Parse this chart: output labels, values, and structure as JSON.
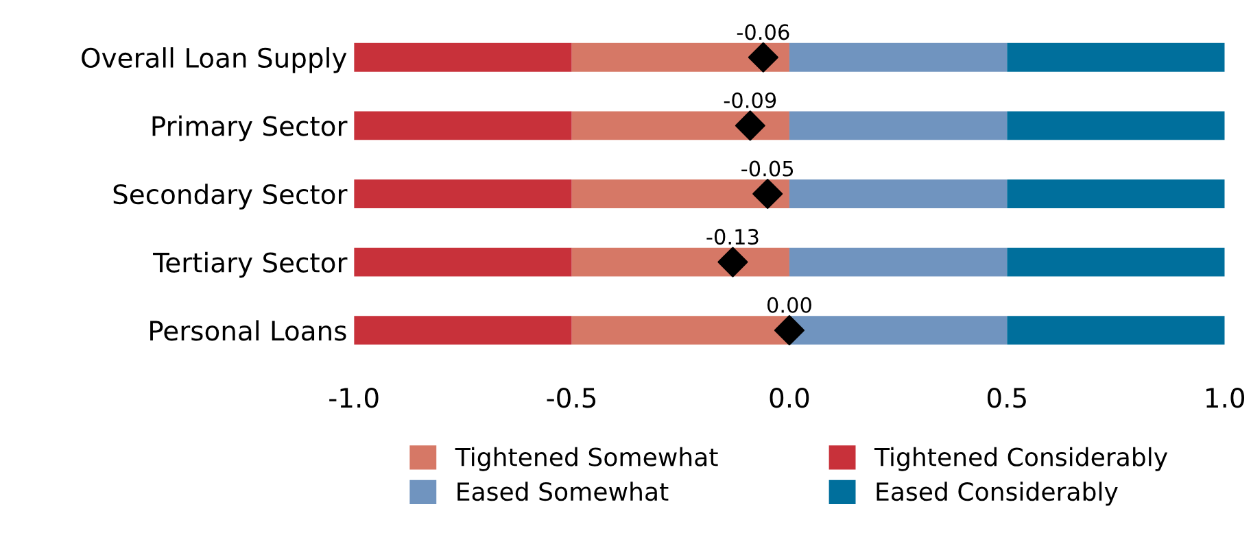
{
  "chart_data": {
    "type": "bar",
    "orientation": "horizontal",
    "stacked": true,
    "categories": [
      "Overall Loan Supply",
      "Primary Sector",
      "Secondary Sector",
      "Tertiary Sector",
      "Personal Loans"
    ],
    "series": [
      {
        "name": "Tightened Somewhat",
        "color": "#d67866",
        "values": [
          -0.5,
          -0.5,
          -0.5,
          -0.5,
          -0.5
        ]
      },
      {
        "name": "Tightened Considerably",
        "color": "#c8313a",
        "values": [
          -0.5,
          -0.5,
          -0.5,
          -0.5,
          -0.5
        ]
      },
      {
        "name": "Eased Somewhat",
        "color": "#7094bf",
        "values": [
          0.5,
          0.5,
          0.5,
          0.5,
          0.5
        ]
      },
      {
        "name": "Eased Considerably",
        "color": "#006f9c",
        "values": [
          0.5,
          0.5,
          0.5,
          0.5,
          0.5
        ]
      },
      {
        "type": "scatter",
        "color": "#000000",
        "marker": "diamond",
        "values": [
          -0.06,
          -0.09,
          -0.05,
          -0.13,
          0.0
        ],
        "value_labels": [
          "-0.06",
          "-0.09",
          "-0.05",
          "-0.13",
          "0.00"
        ]
      }
    ],
    "xlim": [
      -1.0,
      1.0
    ],
    "xticks": [
      {
        "value": -1.0,
        "label": "-1.0"
      },
      {
        "value": -0.5,
        "label": "-0.5"
      },
      {
        "value": 0,
        "label": "0.0"
      },
      {
        "value": 0.5,
        "label": "0.5"
      },
      {
        "value": 1.0,
        "label": "1.0"
      }
    ],
    "grid": false,
    "legend": "bottom"
  }
}
